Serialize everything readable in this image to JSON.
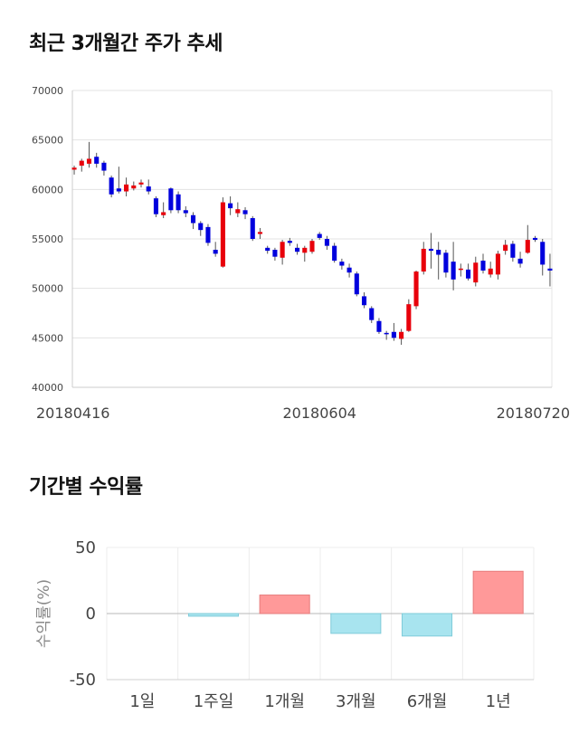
{
  "section1": {
    "title": "최근 3개월간 주가 추세"
  },
  "section2": {
    "title": "기간별 수익률"
  },
  "chart_data": [
    {
      "type": "candlestick",
      "ylim": [
        40000,
        70000
      ],
      "yticks": [
        "70000",
        "65000",
        "60000",
        "55000",
        "50000",
        "45000",
        "40000"
      ],
      "xtick_labels": [
        {
          "label": "20180416",
          "index": 0
        },
        {
          "label": "20180604",
          "index": 33
        },
        {
          "label": "20180720",
          "index": 65
        }
      ],
      "colors": {
        "up": "#e8000b",
        "down": "#0000dd"
      },
      "candles": [
        [
          62000,
          62200,
          62400,
          61500
        ],
        [
          62400,
          62900,
          63100,
          61800
        ],
        [
          62600,
          63100,
          64800,
          62200
        ],
        [
          63300,
          62600,
          63700,
          62200
        ],
        [
          62700,
          61900,
          62900,
          61400
        ],
        [
          61200,
          59500,
          61400,
          59200
        ],
        [
          60100,
          59800,
          62300,
          59600
        ],
        [
          59800,
          60500,
          61200,
          59300
        ],
        [
          60100,
          60400,
          60800,
          59900
        ],
        [
          60500,
          60700,
          61000,
          60200
        ],
        [
          60300,
          59800,
          61000,
          59500
        ],
        [
          59100,
          57500,
          59300,
          57200
        ],
        [
          57400,
          57700,
          58700,
          57100
        ],
        [
          60100,
          57900,
          60200,
          57600
        ],
        [
          59500,
          57900,
          59800,
          57600
        ],
        [
          57900,
          57600,
          58300,
          57200
        ],
        [
          57400,
          56600,
          57700,
          56000
        ],
        [
          56600,
          55900,
          56800,
          55300
        ],
        [
          56200,
          54600,
          56500,
          54300
        ],
        [
          53900,
          53500,
          54700,
          53200
        ],
        [
          52200,
          58700,
          59200,
          52100
        ],
        [
          58600,
          58100,
          59300,
          57400
        ],
        [
          57600,
          58000,
          58700,
          57200
        ],
        [
          57900,
          57500,
          58200,
          57000
        ],
        [
          57100,
          55000,
          57300,
          54800
        ],
        [
          55500,
          55700,
          56100,
          55000
        ],
        [
          54100,
          53800,
          54300,
          53500
        ],
        [
          53900,
          53200,
          54100,
          52800
        ],
        [
          53100,
          54700,
          54900,
          52400
        ],
        [
          54800,
          54600,
          55100,
          54300
        ],
        [
          54100,
          53700,
          54500,
          53400
        ],
        [
          53600,
          54100,
          54300,
          52700
        ],
        [
          53700,
          54800,
          55000,
          53500
        ],
        [
          55500,
          55100,
          55700,
          54900
        ],
        [
          55000,
          54300,
          55300,
          53900
        ],
        [
          54300,
          52800,
          54600,
          52600
        ],
        [
          52700,
          52300,
          53000,
          51900
        ],
        [
          52100,
          51600,
          52500,
          51100
        ],
        [
          51500,
          49400,
          51700,
          49200
        ],
        [
          49200,
          48300,
          49600,
          48000
        ],
        [
          48000,
          46800,
          48200,
          46500
        ],
        [
          46700,
          45600,
          47000,
          45400
        ],
        [
          45500,
          45400,
          45700,
          44800
        ],
        [
          45600,
          45000,
          46500,
          44700
        ],
        [
          44900,
          45600,
          45900,
          44300
        ],
        [
          45700,
          48400,
          48900,
          45600
        ],
        [
          48200,
          51700,
          51800,
          47900
        ],
        [
          51700,
          54000,
          54700,
          51400
        ],
        [
          54000,
          53800,
          55600,
          52000
        ],
        [
          53900,
          53400,
          54700,
          50900
        ],
        [
          53600,
          51600,
          53900,
          51100
        ],
        [
          52700,
          50900,
          54700,
          49800
        ],
        [
          51900,
          52000,
          52500,
          51200
        ],
        [
          51900,
          51000,
          52500,
          50800
        ],
        [
          50600,
          52600,
          53200,
          50200
        ],
        [
          52800,
          51800,
          53500,
          51500
        ],
        [
          51400,
          52000,
          52700,
          51100
        ],
        [
          51400,
          53500,
          53800,
          50900
        ],
        [
          53800,
          54400,
          54900,
          53400
        ],
        [
          54500,
          53100,
          54800,
          52700
        ],
        [
          53000,
          52500,
          53700,
          52100
        ],
        [
          53600,
          54900,
          56400,
          53500
        ],
        [
          55100,
          54900,
          55300,
          54700
        ],
        [
          54700,
          52400,
          55000,
          51300
        ],
        [
          52000,
          51800,
          53500,
          50200
        ]
      ]
    },
    {
      "type": "bar",
      "categories": [
        "1일",
        "1주일",
        "1개월",
        "3개월",
        "6개월",
        "1년"
      ],
      "values": [
        0,
        -2,
        14,
        -15,
        -17,
        32
      ],
      "ylabel": "수익률(%)",
      "ylim": [
        -50,
        50
      ],
      "yticks": [
        "50",
        "0",
        "-50"
      ],
      "colors": {
        "positive": "#ff9999",
        "negative": "#a8e4ef",
        "positive_edge": "#e67c7c",
        "negative_edge": "#7fcbd9"
      }
    }
  ]
}
